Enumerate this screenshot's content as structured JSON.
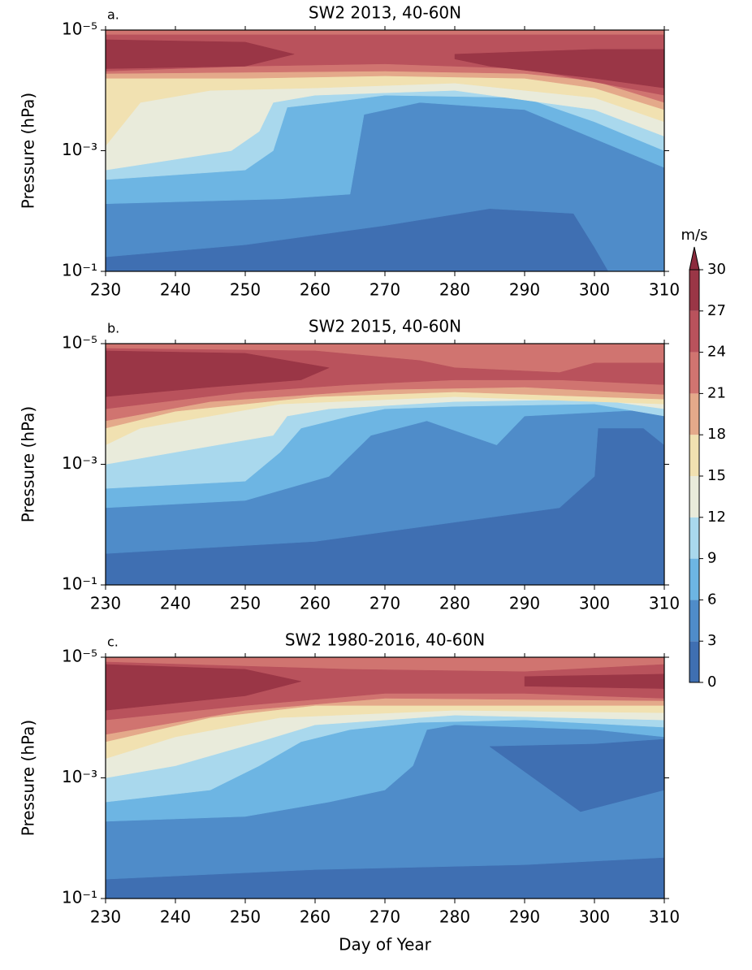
{
  "colorbar": {
    "label": "m/s",
    "levels": [
      0,
      3,
      6,
      9,
      12,
      15,
      18,
      21,
      24,
      27,
      30
    ],
    "colors": [
      "#3f6fb2",
      "#4f8cc9",
      "#6db5e3",
      "#a9d8ed",
      "#e9ebdb",
      "#f1e1b1",
      "#e4a98a",
      "#d07470",
      "#b9525c",
      "#9a3646"
    ],
    "extend_color": "#8c2b3d"
  },
  "chart_data": [
    {
      "type": "contour",
      "panel_label": "a.",
      "title": "SW2 2013, 40-60N",
      "y_label": "Pressure (hPa)",
      "xlim": [
        230,
        310
      ],
      "xticks": [
        230,
        240,
        250,
        260,
        270,
        280,
        290,
        300,
        310
      ],
      "ylim": [
        1e-05,
        0.1
      ],
      "y_scale": "log",
      "yticks": [
        {
          "value": 1e-05,
          "label": "10⁻⁵"
        },
        {
          "value": 0.001,
          "label": "10⁻³"
        },
        {
          "value": 0.1,
          "label": "10⁻¹"
        }
      ]
    },
    {
      "type": "contour",
      "panel_label": "b.",
      "title": "SW2 2015, 40-60N",
      "y_label": "Pressure (hPa)",
      "xlim": [
        230,
        310
      ],
      "xticks": [
        230,
        240,
        250,
        260,
        270,
        280,
        290,
        300,
        310
      ],
      "ylim": [
        1e-05,
        0.1
      ],
      "y_scale": "log",
      "yticks": [
        {
          "value": 1e-05,
          "label": "10⁻⁵"
        },
        {
          "value": 0.001,
          "label": "10⁻³"
        },
        {
          "value": 0.1,
          "label": "10⁻¹"
        }
      ]
    },
    {
      "type": "contour",
      "panel_label": "c.",
      "title": "SW2 1980-2016, 40-60N",
      "y_label": "Pressure (hPa)",
      "x_label": "Day of Year",
      "xlim": [
        230,
        310
      ],
      "xticks": [
        230,
        240,
        250,
        260,
        270,
        280,
        290,
        300,
        310
      ],
      "ylim": [
        1e-05,
        0.1
      ],
      "y_scale": "log",
      "yticks": [
        {
          "value": 1e-05,
          "label": "10⁻⁵"
        },
        {
          "value": 0.001,
          "label": "10⁻³"
        },
        {
          "value": 0.1,
          "label": "10⁻¹"
        }
      ]
    }
  ]
}
